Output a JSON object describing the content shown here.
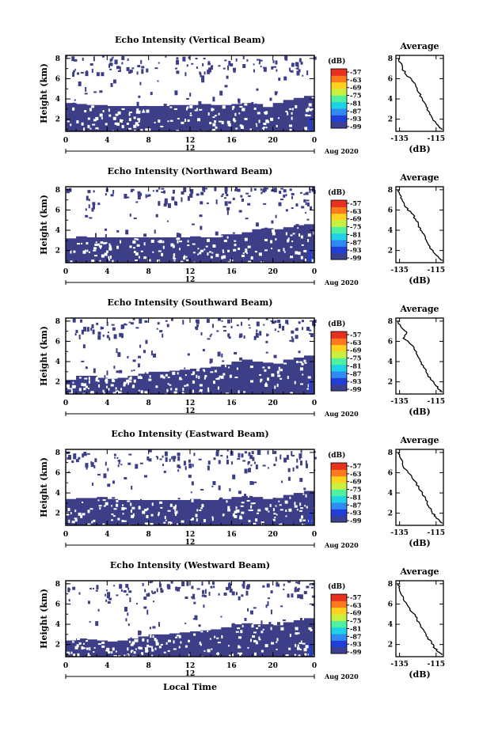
{
  "figure": {
    "x_label": "Local Time",
    "unit_label": "(dB)",
    "date_label": "Aug 2020",
    "colorbar_ticks": [
      "-57",
      "-63",
      "-69",
      "-75",
      "-81",
      "-87",
      "-93",
      "-99"
    ],
    "colormap": [
      "#3b3f8f",
      "#1f3fd6",
      "#2f8bf2",
      "#1fd2e6",
      "#4ff0a0",
      "#c8f040",
      "#ffd21f",
      "#ff7a1f",
      "#e8301f"
    ],
    "background_color": "#3c3f88",
    "missing_color": "#ffffff"
  },
  "chart_data": [
    {
      "type": "heatmap",
      "title": "Echo Intensity (Vertical Beam)",
      "ylabel": "Height (km)",
      "xlabel": "",
      "x_ticks": [
        "0",
        "4",
        "8",
        "12",
        "16",
        "20",
        "0"
      ],
      "x_center_label": "12",
      "y_ticks": [
        "2",
        "4",
        "6",
        "8"
      ],
      "xlim": [
        0,
        24
      ],
      "ylim": [
        0.8,
        8.3
      ],
      "valid_top_km": [
        3.6,
        3.5,
        3.4,
        3.4,
        3.3,
        3.3,
        3.3,
        3.3,
        3.3,
        3.3,
        3.4,
        3.4,
        3.4,
        3.5,
        3.4,
        3.4,
        3.5,
        3.6,
        3.5,
        3.2,
        3.6,
        3.9,
        4.1,
        4.3,
        4.3
      ],
      "colorbar_range": [
        -99,
        -57
      ],
      "average_profile": {
        "title": "Average",
        "xlabel": "(dB)",
        "x_ticks": [
          "-135",
          "-115"
        ],
        "y_ticks": [
          "2",
          "4",
          "6",
          "8"
        ],
        "xlim": [
          -137,
          -111
        ],
        "ylim": [
          0.8,
          8.3
        ],
        "x": [
          -135.6,
          -134.6,
          -133.4,
          -131.5,
          -128.2,
          -126.0,
          -124.4,
          -122.5,
          -120.5,
          -119.2,
          -117.4,
          -115.0,
          -113.0,
          -111.5
        ],
        "y": [
          8.0,
          7.6,
          7.0,
          6.4,
          5.8,
          5.2,
          4.6,
          4.0,
          3.4,
          2.8,
          2.2,
          1.6,
          1.2,
          1.0
        ]
      }
    },
    {
      "type": "heatmap",
      "title": "Echo Intensity (Northward Beam)",
      "ylabel": "Height (km)",
      "xlabel": "",
      "x_ticks": [
        "0",
        "4",
        "8",
        "12",
        "16",
        "20",
        "0"
      ],
      "x_center_label": "12",
      "y_ticks": [
        "2",
        "4",
        "6",
        "8"
      ],
      "xlim": [
        0,
        24
      ],
      "ylim": [
        0.8,
        8.3
      ],
      "valid_top_km": [
        3.2,
        3.4,
        3.3,
        3.3,
        3.3,
        3.3,
        3.3,
        3.3,
        3.3,
        3.3,
        3.3,
        3.3,
        3.4,
        3.3,
        3.3,
        3.6,
        3.6,
        3.8,
        4.1,
        4.2,
        4.1,
        4.3,
        4.5,
        4.6,
        4.6
      ],
      "colorbar_range": [
        -99,
        -57
      ],
      "average_profile": {
        "title": "Average",
        "xlabel": "(dB)",
        "x_ticks": [
          "-135",
          "-115"
        ],
        "y_ticks": [
          "2",
          "4",
          "6",
          "8"
        ],
        "xlim": [
          -137,
          -111
        ],
        "ylim": [
          0.8,
          8.3
        ],
        "x": [
          -135.6,
          -134.8,
          -133.5,
          -131.8,
          -128.5,
          -126.2,
          -124.6,
          -122.8,
          -120.8,
          -119.5,
          -117.5,
          -115.2,
          -113.0,
          -111.5
        ],
        "y": [
          8.0,
          7.5,
          6.9,
          6.3,
          5.7,
          5.1,
          4.5,
          3.9,
          3.3,
          2.7,
          2.1,
          1.6,
          1.2,
          1.0
        ]
      }
    },
    {
      "type": "heatmap",
      "title": "Echo Intensity (Southward Beam)",
      "ylabel": "Height (km)",
      "xlabel": "",
      "x_ticks": [
        "0",
        "4",
        "8",
        "12",
        "16",
        "20",
        "0"
      ],
      "x_center_label": "12",
      "y_ticks": [
        "2",
        "4",
        "6",
        "8"
      ],
      "xlim": [
        0,
        24
      ],
      "ylim": [
        0.8,
        8.3
      ],
      "valid_top_km": [
        2.2,
        2.6,
        2.6,
        2.4,
        2.3,
        2.4,
        2.6,
        2.8,
        3.0,
        3.0,
        3.1,
        3.2,
        3.3,
        3.4,
        3.5,
        3.7,
        4.0,
        4.2,
        4.0,
        3.9,
        3.8,
        4.2,
        4.4,
        4.6,
        4.6
      ],
      "colorbar_range": [
        -99,
        -57
      ],
      "average_profile": {
        "title": "Average",
        "xlabel": "(dB)",
        "x_ticks": [
          "-135",
          "-115"
        ],
        "y_ticks": [
          "2",
          "4",
          "6",
          "8"
        ],
        "xlim": [
          -137,
          -111
        ],
        "ylim": [
          0.8,
          8.3
        ],
        "x": [
          -135.6,
          -134.5,
          -131.0,
          -133.0,
          -128.8,
          -126.5,
          -125.0,
          -123.0,
          -121.0,
          -119.5,
          -117.0,
          -115.0,
          -113.0,
          -111.5
        ],
        "y": [
          8.0,
          7.5,
          6.9,
          6.3,
          5.7,
          5.1,
          4.5,
          3.9,
          3.3,
          2.7,
          2.1,
          1.6,
          1.2,
          1.0
        ]
      }
    },
    {
      "type": "heatmap",
      "title": "Echo Intensity (Eastward Beam)",
      "ylabel": "Height (km)",
      "xlabel": "",
      "x_ticks": [
        "0",
        "4",
        "8",
        "12",
        "16",
        "20",
        "0"
      ],
      "x_center_label": "12",
      "y_ticks": [
        "2",
        "4",
        "6",
        "8"
      ],
      "xlim": [
        0,
        24
      ],
      "ylim": [
        0.8,
        8.3
      ],
      "valid_top_km": [
        3.4,
        3.5,
        3.5,
        3.6,
        3.4,
        3.3,
        3.3,
        3.3,
        3.3,
        3.3,
        3.3,
        3.3,
        3.4,
        3.3,
        3.3,
        3.4,
        3.6,
        3.7,
        3.6,
        3.4,
        3.5,
        3.8,
        4.0,
        4.2,
        4.2
      ],
      "colorbar_range": [
        -99,
        -57
      ],
      "average_profile": {
        "title": "Average",
        "xlabel": "(dB)",
        "x_ticks": [
          "-135",
          "-115"
        ],
        "y_ticks": [
          "2",
          "4",
          "6",
          "8"
        ],
        "xlim": [
          -137,
          -111
        ],
        "ylim": [
          0.8,
          8.3
        ],
        "x": [
          -135.6,
          -134.7,
          -133.4,
          -131.5,
          -128.4,
          -126.2,
          -124.5,
          -122.6,
          -120.6,
          -119.2,
          -117.2,
          -115.0,
          -113.0,
          -111.5
        ],
        "y": [
          8.0,
          7.5,
          6.9,
          6.3,
          5.7,
          5.1,
          4.5,
          3.9,
          3.3,
          2.7,
          2.1,
          1.6,
          1.2,
          1.0
        ]
      }
    },
    {
      "type": "heatmap",
      "title": "Echo Intensity (Westward Beam)",
      "ylabel": "Height (km)",
      "xlabel": "Local Time",
      "x_ticks": [
        "0",
        "4",
        "8",
        "12",
        "16",
        "20",
        "0"
      ],
      "x_center_label": "12",
      "y_ticks": [
        "2",
        "4",
        "6",
        "8"
      ],
      "xlim": [
        0,
        24
      ],
      "ylim": [
        0.8,
        8.3
      ],
      "valid_top_km": [
        2.4,
        2.6,
        2.5,
        2.4,
        2.3,
        2.4,
        2.6,
        2.8,
        3.0,
        3.0,
        3.1,
        3.2,
        3.3,
        3.4,
        3.5,
        3.7,
        4.0,
        4.1,
        4.0,
        4.0,
        3.9,
        4.2,
        4.4,
        4.6,
        4.6
      ],
      "colorbar_range": [
        -99,
        -57
      ],
      "average_profile": {
        "title": "Average",
        "xlabel": "(dB)",
        "x_ticks": [
          "-135",
          "-115"
        ],
        "y_ticks": [
          "2",
          "4",
          "6",
          "8"
        ],
        "xlim": [
          -137,
          -111
        ],
        "ylim": [
          0.8,
          8.3
        ],
        "x": [
          -135.8,
          -135.0,
          -134.0,
          -132.5,
          -130.0,
          -127.5,
          -125.5,
          -123.5,
          -121.5,
          -119.5,
          -117.5,
          -115.5,
          -113.0,
          -111.5
        ],
        "y": [
          8.0,
          7.5,
          6.9,
          6.3,
          5.7,
          5.1,
          4.5,
          3.9,
          3.3,
          2.7,
          2.1,
          1.6,
          1.2,
          1.0
        ]
      }
    }
  ]
}
